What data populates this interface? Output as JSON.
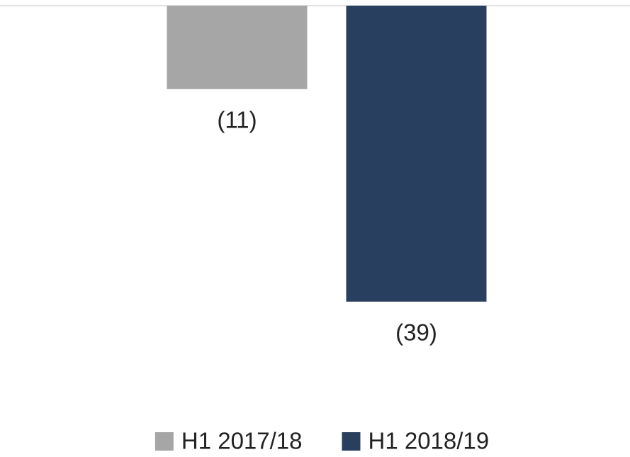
{
  "chart_data": {
    "type": "bar",
    "categories": [
      null
    ],
    "series": [
      {
        "name": "H1 2017/18",
        "color": "#a6a6a6",
        "values": [
          -11
        ],
        "value_labels": [
          "(11)"
        ]
      },
      {
        "name": "H1 2018/19",
        "color": "#283f60",
        "values": [
          -39
        ],
        "value_labels": [
          "(39)"
        ]
      }
    ],
    "ylim": [
      -45,
      0
    ],
    "legend": "bottom"
  }
}
